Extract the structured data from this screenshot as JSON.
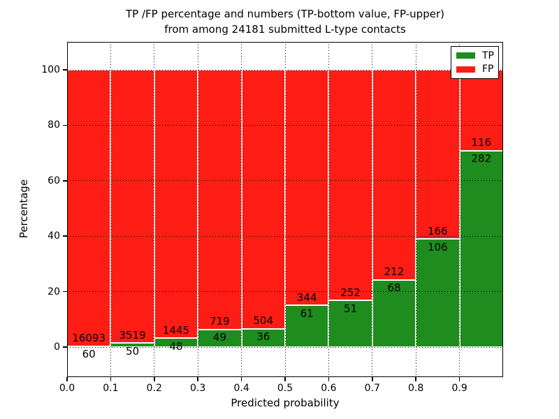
{
  "title": {
    "line1": "TP /FP percentage and numbers (TP-bottom value, FP-upper)",
    "line2": "from among 24181 submitted L-type contacts"
  },
  "axes": {
    "xlabel": "Predicted probability",
    "ylabel": "Percentage"
  },
  "legend": {
    "position": "upper right",
    "items": [
      {
        "label": "TP",
        "color": "#1e8c1e"
      },
      {
        "label": "FP",
        "color": "#fd1d14"
      }
    ]
  },
  "colors": {
    "tp_green": "#1e8c1e",
    "fp_red": "#fd1d14",
    "grid": "#000000",
    "background": "#ffffff",
    "bar_edge": "#ffffff"
  },
  "chart_data": {
    "type": "bar",
    "stacked": true,
    "title": "TP /FP percentage and numbers (TP-bottom value, FP-upper) from among 24181 submitted L-type contacts",
    "xlabel": "Predicted probability",
    "ylabel": "Percentage",
    "total_contacts": 24181,
    "bin_width": 0.1,
    "categories": [
      0.0,
      0.1,
      0.2,
      0.3,
      0.4,
      0.5,
      0.6,
      0.7,
      0.8,
      0.9
    ],
    "series": [
      {
        "name": "TP",
        "color": "#1e8c1e",
        "counts": [
          60,
          50,
          48,
          49,
          36,
          61,
          51,
          68,
          106,
          282
        ],
        "pct": [
          0.37,
          1.4,
          3.21,
          6.38,
          6.67,
          15.06,
          16.83,
          24.29,
          38.97,
          70.85
        ]
      },
      {
        "name": "FP",
        "color": "#fd1d14",
        "counts": [
          16093,
          3519,
          1445,
          719,
          504,
          344,
          252,
          212,
          166,
          116
        ],
        "pct": [
          99.63,
          98.6,
          96.79,
          93.62,
          93.33,
          84.94,
          83.17,
          75.71,
          61.03,
          29.15
        ]
      }
    ],
    "yticks": [
      0,
      20,
      40,
      60,
      80,
      100
    ],
    "xtick_labels": [
      "0.0",
      "0.1",
      "0.2",
      "0.3",
      "0.4",
      "0.5",
      "0.6",
      "0.7",
      "0.8",
      "0.9"
    ],
    "ylim": [
      -10.8,
      110.1
    ],
    "xlim": [
      0.0,
      1.0
    ],
    "grid": "dotted",
    "legend_position": "upper right"
  }
}
